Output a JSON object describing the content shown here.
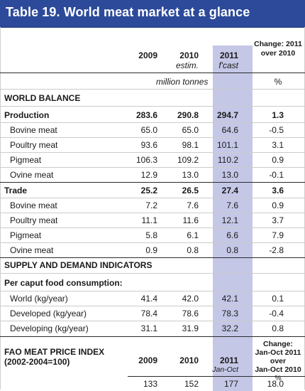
{
  "title": "Table 19. World meat market at a glance",
  "header": {
    "col_2009": "2009",
    "col_2010": "2010",
    "col_2010_sub": "estim.",
    "col_2011": "2011",
    "col_2011_sub": "f'cast",
    "change_l1": "Change: 2011",
    "change_l2": "over 2010",
    "unit_main": "million tonnes",
    "unit_change": "%"
  },
  "sections": {
    "world_balance": "WORLD BALANCE",
    "supply_demand": "SUPPLY AND DEMAND INDICATORS",
    "per_caput": "Per caput food consumption:"
  },
  "rows": [
    {
      "label": "Production",
      "v2009": "283.6",
      "v2010": "290.8",
      "v2011": "294.7",
      "change": "1.3"
    },
    {
      "label": "Bovine meat",
      "v2009": "65.0",
      "v2010": "65.0",
      "v2011": "64.6",
      "change": "-0.5"
    },
    {
      "label": "Poultry meat",
      "v2009": "93.6",
      "v2010": "98.1",
      "v2011": "101.1",
      "change": "3.1"
    },
    {
      "label": "Pigmeat",
      "v2009": "106.3",
      "v2010": "109.2",
      "v2011": "110.2",
      "change": "0.9"
    },
    {
      "label": "Ovine meat",
      "v2009": "12.9",
      "v2010": "13.0",
      "v2011": "13.0",
      "change": "-0.1"
    },
    {
      "label": "Trade",
      "v2009": "25.2",
      "v2010": "26.5",
      "v2011": "27.4",
      "change": "3.6"
    },
    {
      "label": "Bovine meat",
      "v2009": "7.2",
      "v2010": "7.6",
      "v2011": "7.6",
      "change": "0.9"
    },
    {
      "label": "Poultry meat",
      "v2009": "11.1",
      "v2010": "11.6",
      "v2011": "12.1",
      "change": "3.7"
    },
    {
      "label": "Pigmeat",
      "v2009": "5.8",
      "v2010": "6.1",
      "v2011": "6.6",
      "change": "7.9"
    },
    {
      "label": "Ovine meat",
      "v2009": "0.9",
      "v2010": "0.8",
      "v2011": "0.8",
      "change": "-2.8"
    },
    {
      "label": "World (kg/year)",
      "v2009": "41.4",
      "v2010": "42.0",
      "v2011": "42.1",
      "change": "0.1"
    },
    {
      "label": "Developed (kg/year)",
      "v2009": "78.4",
      "v2010": "78.6",
      "v2011": "78.3",
      "change": "-0.4"
    },
    {
      "label": "Developing (kg/year)",
      "v2009": "31.1",
      "v2010": "31.9",
      "v2011": "32.2",
      "change": "0.8"
    }
  ],
  "price_index": {
    "label_l1": "FAO MEAT PRICE INDEX",
    "label_l2": "(2002-2004=100)",
    "col_2009": "2009",
    "col_2010": "2010",
    "col_2011": "2011",
    "col_2011_sub": "Jan-Oct",
    "change_l1": "Change:",
    "change_l2": "Jan-Oct 2011",
    "change_l3": "over",
    "change_l4": "Jan-Oct 2010",
    "change_unit": "%",
    "v2009": "133",
    "v2010": "152",
    "v2011": "177",
    "change": "18.0"
  }
}
